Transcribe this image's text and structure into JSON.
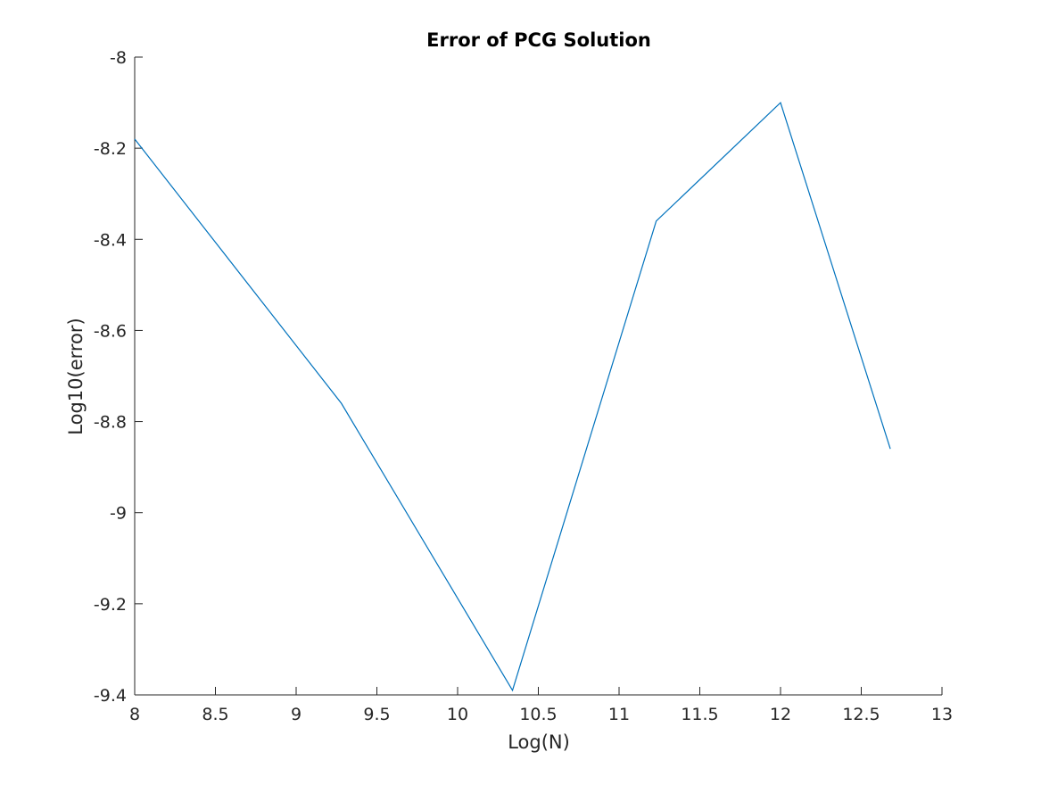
{
  "chart_data": {
    "type": "line",
    "title": "Error of PCG Solution",
    "xlabel": "Log(N)",
    "ylabel": "Log10(error)",
    "xlim": [
      8,
      13
    ],
    "ylim": [
      -9.4,
      -8
    ],
    "x_ticks": [
      8,
      8.5,
      9,
      9.5,
      10,
      10.5,
      11,
      11.5,
      12,
      12.5,
      13
    ],
    "x_tick_labels": [
      "8",
      "8.5",
      "9",
      "9.5",
      "10",
      "10.5",
      "11",
      "11.5",
      "12",
      "12.5",
      "13"
    ],
    "y_ticks": [
      -8,
      -8.2,
      -8.4,
      -8.6,
      -8.8,
      -9,
      -9.2,
      -9.4
    ],
    "y_tick_labels": [
      "-8",
      "-8.2",
      "-8.4",
      "-8.6",
      "-8.8",
      "-9",
      "-9.2",
      "-9.4"
    ],
    "grid": false,
    "series": [
      {
        "color": "#0072BD",
        "x": [
          8,
          9.28,
          10.34,
          11.23,
          12.0,
          12.68
        ],
        "y": [
          -8.18,
          -8.76,
          -9.39,
          -8.36,
          -8.1,
          -8.86
        ]
      }
    ]
  }
}
